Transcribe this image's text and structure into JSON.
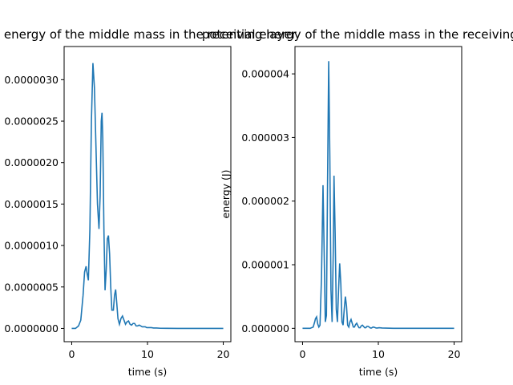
{
  "chart_data": [
    {
      "type": "line",
      "title": "kinetic energy of the middle mass in the receiving layer",
      "xlabel": "time (s)",
      "ylabel": "",
      "xlim": [
        -1,
        21
      ],
      "ylim": [
        -1.6e-07,
        3.4e-06
      ],
      "xticks": [
        0,
        10,
        20
      ],
      "xtick_labels": [
        "0",
        "10",
        "20"
      ],
      "yticks": [
        0,
        5e-07,
        1e-06,
        1.5e-06,
        2e-06,
        2.5e-06,
        3e-06
      ],
      "ytick_labels": [
        "0.0000000",
        "0.0000005",
        "0.0000010",
        "0.0000015",
        "0.0000020",
        "0.0000025",
        "0.0000030"
      ],
      "grid": false,
      "color": "#1f77b4",
      "series": [
        {
          "x": [
            0,
            0.5,
            0.9,
            1.2,
            1.5,
            1.7,
            1.9,
            2.0,
            2.2,
            2.4,
            2.6,
            2.8,
            3.0,
            3.2,
            3.4,
            3.6,
            3.75,
            3.9,
            4.0,
            4.1,
            4.25,
            4.4,
            4.55,
            4.7,
            4.85,
            5.0,
            5.15,
            5.3,
            5.5,
            5.65,
            5.8,
            5.95,
            6.1,
            6.3,
            6.5,
            6.7,
            6.9,
            7.1,
            7.3,
            7.5,
            7.7,
            7.9,
            8.1,
            8.3,
            8.5,
            8.7,
            8.9,
            9.1,
            9.3,
            9.5,
            9.7,
            9.9,
            10.2,
            10.5,
            10.8,
            11.2,
            11.7,
            12.5,
            14,
            16,
            18,
            20
          ],
          "y": [
            0,
            0,
            3e-08,
            1e-07,
            4e-07,
            6.8e-07,
            7.5e-07,
            6.8e-07,
            5.8e-07,
            1.2e-06,
            2.5e-06,
            3.2e-06,
            2.9e-06,
            2.2e-06,
            1.5e-06,
            1.2e-06,
            1.6e-06,
            2.5e-06,
            2.6e-06,
            2.3e-06,
            1.2e-06,
            4.6e-07,
            7e-07,
            1.08e-06,
            1.12e-06,
            9e-07,
            5e-07,
            2.2e-07,
            2.2e-07,
            4e-07,
            4.7e-07,
            3e-07,
            1.2e-07,
            5e-08,
            1.2e-07,
            1.5e-07,
            1e-07,
            5e-08,
            8e-08,
            9e-08,
            5e-08,
            4e-08,
            6e-08,
            6e-08,
            3e-08,
            3e-08,
            4e-08,
            3e-08,
            2e-08,
            2e-08,
            2e-08,
            1e-08,
            1e-08,
            1e-08,
            5e-09,
            5e-09,
            2e-09,
            1e-09,
            0,
            0,
            0,
            0
          ]
        }
      ]
    },
    {
      "type": "line",
      "title": "potential energy of the middle mass in the receiving layer",
      "xlabel": "time (s)",
      "ylabel": "energy (J)",
      "xlim": [
        -1,
        21
      ],
      "ylim": [
        -2.1e-07,
        4.43e-06
      ],
      "xticks": [
        0,
        10,
        20
      ],
      "xtick_labels": [
        "0",
        "10",
        "20"
      ],
      "yticks": [
        0,
        1e-06,
        2e-06,
        3e-06,
        4e-06
      ],
      "ytick_labels": [
        "0.000000",
        "0.000001",
        "0.000002",
        "0.000003",
        "0.000004"
      ],
      "grid": false,
      "color": "#1f77b4",
      "series": [
        {
          "x": [
            0,
            1.0,
            1.4,
            1.6,
            1.7,
            1.85,
            2.0,
            2.15,
            2.3,
            2.5,
            2.7,
            2.85,
            3.0,
            3.15,
            3.3,
            3.45,
            3.6,
            3.75,
            3.9,
            4.05,
            4.15,
            4.3,
            4.45,
            4.6,
            4.75,
            4.9,
            5.05,
            5.2,
            5.35,
            5.5,
            5.65,
            5.8,
            5.95,
            6.1,
            6.25,
            6.4,
            6.55,
            6.7,
            6.85,
            7.0,
            7.15,
            7.3,
            7.45,
            7.6,
            7.75,
            7.9,
            8.05,
            8.2,
            8.35,
            8.5,
            8.65,
            8.8,
            8.95,
            9.1,
            9.3,
            9.5,
            9.7,
            9.9,
            10.1,
            10.5,
            11,
            12,
            14,
            16,
            18,
            20
          ],
          "y": [
            0,
            0,
            2e-08,
            1e-07,
            1.5e-07,
            1.8e-07,
            7e-08,
            2e-08,
            5e-08,
            8e-07,
            2.25e-06,
            1.2e-06,
            1e-07,
            2e-07,
            2.3e-06,
            4.2e-06,
            2.7e-06,
            6e-07,
            1e-07,
            1.2e-06,
            2.4e-06,
            1.5e-06,
            3e-07,
            1e-07,
            6e-07,
            1.02e-06,
            7e-07,
            1e-07,
            5e-08,
            3e-07,
            5e-07,
            3.5e-07,
            5e-08,
            2e-08,
            1e-07,
            1.4e-07,
            8e-08,
            2e-08,
            2e-08,
            6e-08,
            8e-08,
            4e-08,
            1e-08,
            1e-08,
            4e-08,
            5e-08,
            3e-08,
            1e-08,
            1e-08,
            3e-08,
            3e-08,
            2e-08,
            5e-09,
            5e-09,
            2e-08,
            1.5e-08,
            5e-09,
            5e-09,
            1e-08,
            5e-09,
            3e-09,
            1e-09,
            0,
            0,
            0,
            0
          ]
        }
      ]
    }
  ]
}
